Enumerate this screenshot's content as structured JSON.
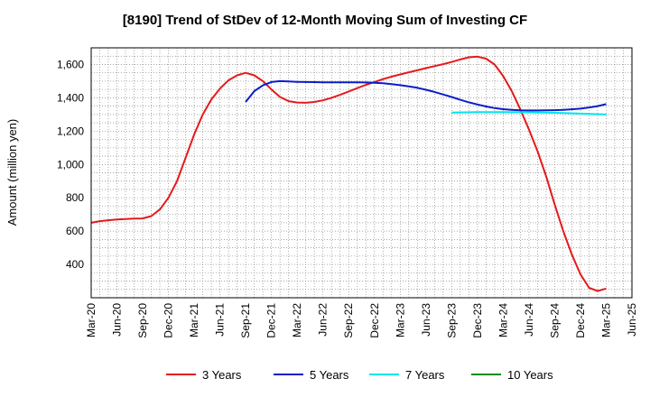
{
  "chart_data": {
    "type": "line",
    "title": "[8190]  Trend of StDev of 12-Month Moving Sum of Investing CF",
    "xlabel": "",
    "ylabel": "Amount (million yen)",
    "ylim": [
      200,
      1700
    ],
    "yticks": [
      400,
      600,
      800,
      1000,
      1200,
      1400,
      1600
    ],
    "ytick_labels": [
      "400",
      "600",
      "800",
      "1,000",
      "1,200",
      "1,400",
      "1,600"
    ],
    "xticks": [
      "Mar-20",
      "Jun-20",
      "Sep-20",
      "Dec-20",
      "Mar-21",
      "Jun-21",
      "Sep-21",
      "Dec-21",
      "Mar-22",
      "Jun-22",
      "Sep-22",
      "Dec-22",
      "Mar-23",
      "Jun-23",
      "Sep-23",
      "Dec-23",
      "Mar-24",
      "Jun-24",
      "Sep-24",
      "Dec-24",
      "Mar-25",
      "Jun-25"
    ],
    "grid": true,
    "legend_position": "bottom",
    "series": [
      {
        "name": "3 Years",
        "color": "#e31a1c",
        "x": [
          "Mar-20",
          "Apr-20",
          "May-20",
          "Jun-20",
          "Jul-20",
          "Aug-20",
          "Sep-20",
          "Oct-20",
          "Nov-20",
          "Dec-20",
          "Jan-21",
          "Feb-21",
          "Mar-21",
          "Apr-21",
          "May-21",
          "Jun-21",
          "Jul-21",
          "Aug-21",
          "Sep-21",
          "Oct-21",
          "Nov-21",
          "Dec-21",
          "Jan-22",
          "Feb-22",
          "Mar-22",
          "Apr-22",
          "May-22",
          "Jun-22",
          "Jul-22",
          "Aug-22",
          "Sep-22",
          "Oct-22",
          "Nov-22",
          "Dec-22",
          "Jan-23",
          "Feb-23",
          "Mar-23",
          "Apr-23",
          "May-23",
          "Jun-23",
          "Jul-23",
          "Aug-23",
          "Sep-23",
          "Oct-23",
          "Nov-23",
          "Dec-23",
          "Jan-24",
          "Feb-24",
          "Mar-24",
          "Apr-24",
          "May-24",
          "Jun-24",
          "Jul-24",
          "Aug-24",
          "Sep-24",
          "Oct-24",
          "Nov-24",
          "Dec-24",
          "Jan-25",
          "Feb-25",
          "Mar-25"
        ],
        "values": [
          650,
          660,
          665,
          670,
          672,
          675,
          676,
          690,
          730,
          800,
          900,
          1040,
          1180,
          1300,
          1390,
          1455,
          1505,
          1535,
          1550,
          1535,
          1500,
          1450,
          1405,
          1380,
          1372,
          1370,
          1375,
          1385,
          1400,
          1418,
          1438,
          1458,
          1478,
          1495,
          1512,
          1527,
          1540,
          1553,
          1565,
          1578,
          1590,
          1602,
          1615,
          1630,
          1643,
          1647,
          1635,
          1600,
          1530,
          1440,
          1330,
          1210,
          1080,
          930,
          760,
          600,
          460,
          340,
          260,
          240,
          255
        ]
      },
      {
        "name": "5 Years",
        "color": "#0a1ec8",
        "x": [
          "Sep-21",
          "Oct-21",
          "Nov-21",
          "Dec-21",
          "Jan-22",
          "Feb-22",
          "Mar-22",
          "Apr-22",
          "May-22",
          "Jun-22",
          "Jul-22",
          "Aug-22",
          "Sep-22",
          "Oct-22",
          "Nov-22",
          "Dec-22",
          "Jan-23",
          "Feb-23",
          "Mar-23",
          "Apr-23",
          "May-23",
          "Jun-23",
          "Jul-23",
          "Aug-23",
          "Sep-23",
          "Oct-23",
          "Nov-23",
          "Dec-23",
          "Jan-24",
          "Feb-24",
          "Mar-24",
          "Apr-24",
          "May-24",
          "Jun-24",
          "Jul-24",
          "Aug-24",
          "Sep-24",
          "Oct-24",
          "Nov-24",
          "Dec-24",
          "Jan-25",
          "Feb-25",
          "Mar-25"
        ],
        "values": [
          1375,
          1440,
          1475,
          1495,
          1500,
          1498,
          1496,
          1495,
          1494,
          1493,
          1493,
          1493,
          1493,
          1493,
          1492,
          1490,
          1487,
          1482,
          1476,
          1468,
          1460,
          1448,
          1435,
          1420,
          1405,
          1388,
          1373,
          1360,
          1348,
          1338,
          1332,
          1328,
          1325,
          1324,
          1324,
          1325,
          1326,
          1328,
          1331,
          1335,
          1342,
          1350,
          1362
        ]
      },
      {
        "name": "7 Years",
        "color": "#00e5ee",
        "x": [
          "Sep-23",
          "Dec-23",
          "Mar-24",
          "Jun-24",
          "Sep-24",
          "Dec-24",
          "Mar-25"
        ],
        "values": [
          1312,
          1314,
          1314,
          1313,
          1310,
          1305,
          1300
        ]
      },
      {
        "name": "10 Years",
        "color": "#1a8a1a",
        "x": [],
        "values": []
      }
    ]
  }
}
